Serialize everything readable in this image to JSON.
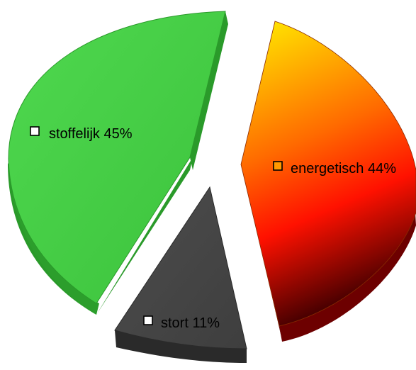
{
  "chart_data": {
    "type": "pie",
    "style": "3d-exploded",
    "legend": "inline",
    "slices": [
      {
        "key": "stoffelijk",
        "label": "stoffelijk",
        "value": 45,
        "value_label": "45%",
        "color_top": "#44cc44",
        "color_side": "#2a9a2a",
        "swatch": "#ffffff"
      },
      {
        "key": "energetisch",
        "label": "energetisch",
        "value": 44,
        "value_label": "44%",
        "color_top_start": "#ffee00",
        "color_top_mid": "#ff1100",
        "color_top_end": "#550000",
        "color_side": "#7a0000",
        "swatch": "#ff9900"
      },
      {
        "key": "stort",
        "label": "stort",
        "value": 11,
        "value_label": "11%",
        "color_top": "#444444",
        "color_side": "#2a2a2a",
        "swatch": "#ffffff"
      }
    ]
  }
}
